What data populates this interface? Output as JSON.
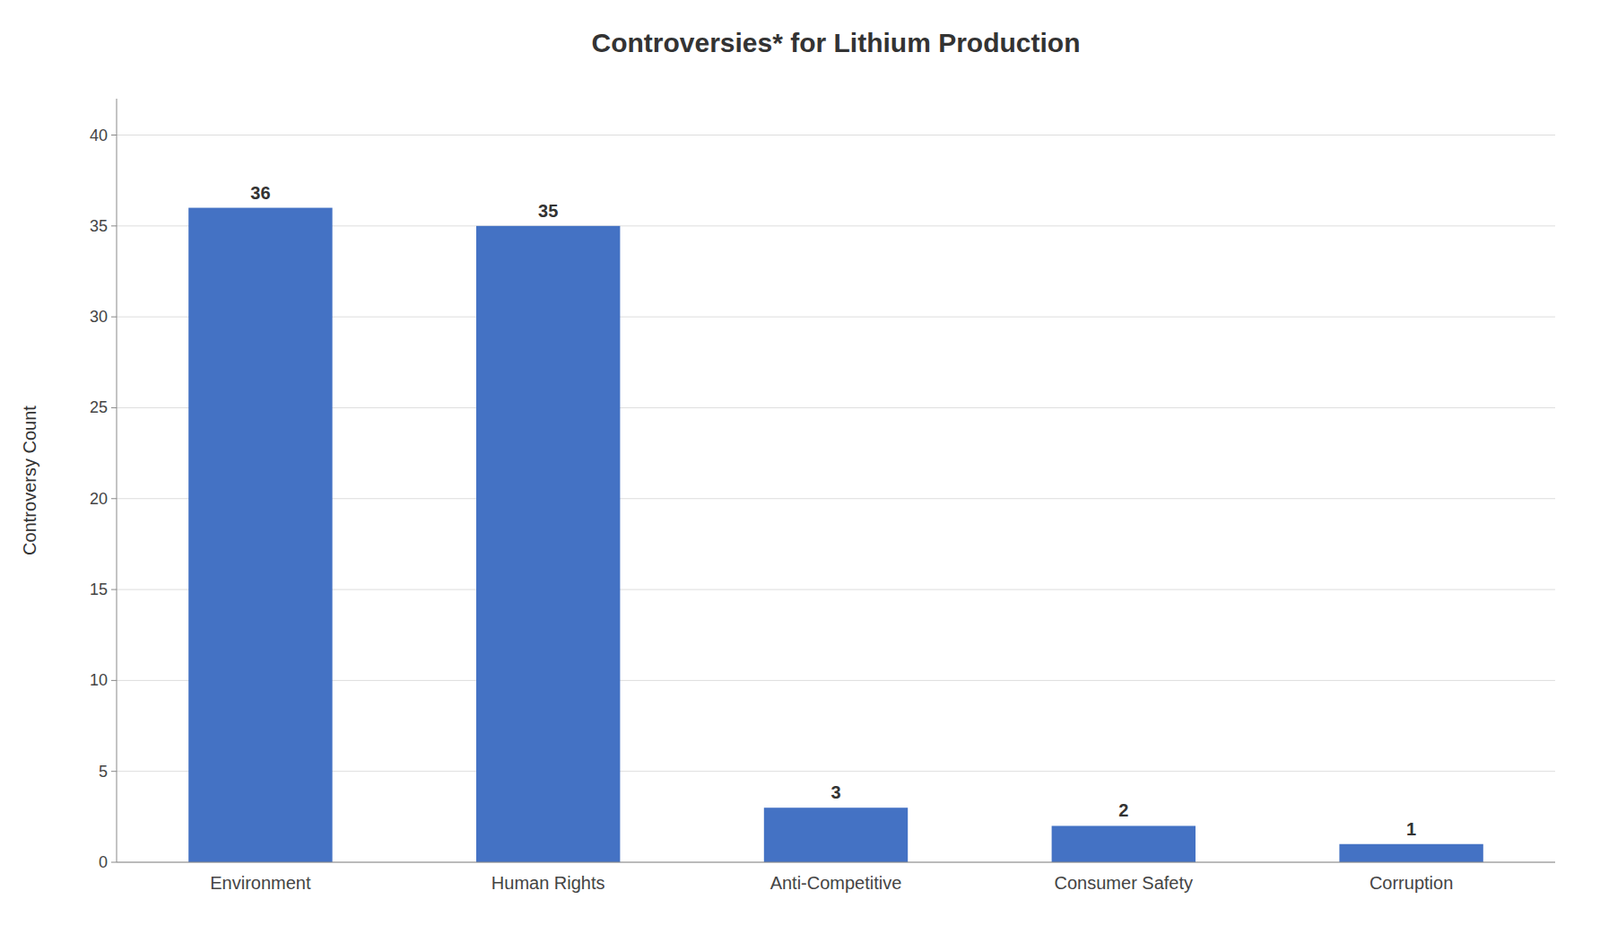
{
  "chart_data": {
    "type": "bar",
    "title": "Controversies* for Lithium Production",
    "categories": [
      "Environment",
      "Human Rights",
      "Anti-Competitive",
      "Consumer Safety",
      "Corruption"
    ],
    "values": [
      36,
      35,
      3,
      2,
      1
    ],
    "color": "#4472c4",
    "ylabel": "Controversy Count",
    "ylim": [
      0,
      42
    ],
    "yticks": [
      0,
      5,
      10,
      15,
      20,
      25,
      30,
      35,
      40
    ],
    "grid": true,
    "data_labels": true
  }
}
